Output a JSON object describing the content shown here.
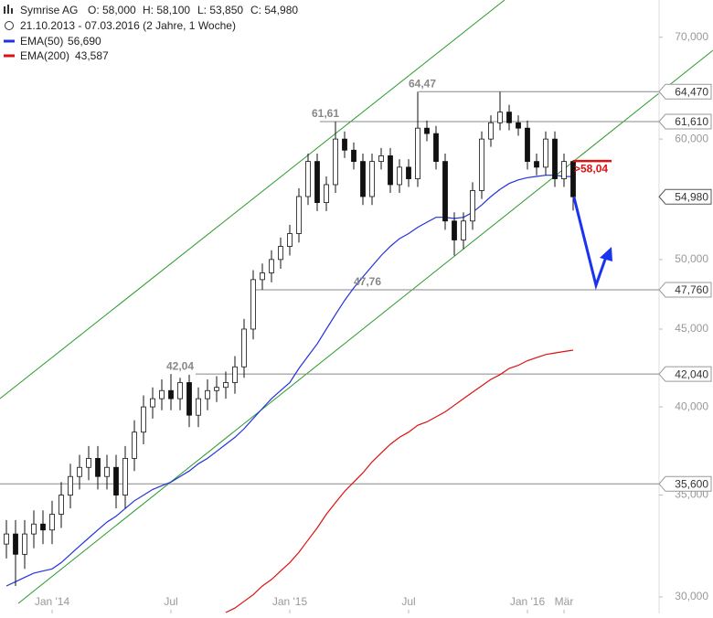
{
  "chart_data": {
    "type": "candlestick",
    "title": "Symrise AG",
    "quote": [
      "O: 58,000",
      "H: 58,100",
      "L: 53,850",
      "C: 54,980"
    ],
    "subtitle": "21.10.2013 - 07.03.2016 (2 Jahre, 1 Woche)",
    "categories": [
      null,
      null,
      null,
      null,
      null,
      "Jan '14",
      null,
      null,
      null,
      null,
      null,
      null,
      null,
      null,
      null,
      null,
      null,
      null,
      "Jul",
      null,
      null,
      null,
      null,
      null,
      null,
      null,
      null,
      null,
      null,
      null,
      null,
      "Jan '15",
      null,
      null,
      null,
      null,
      null,
      null,
      null,
      null,
      null,
      null,
      null,
      null,
      "Jul",
      null,
      null,
      null,
      null,
      null,
      null,
      null,
      null,
      null,
      null,
      null,
      null,
      "Jan '16",
      null,
      null,
      null,
      "Mär",
      null
    ],
    "open": [
      32500,
      33000,
      32000,
      33000,
      33500,
      33200,
      34000,
      35000,
      36000,
      36500,
      37000,
      36000,
      36500,
      35000,
      37000,
      38500,
      40000,
      40500,
      41000,
      40500,
      41500,
      39500,
      40500,
      41000,
      41200,
      41500,
      42500,
      45000,
      48500,
      49000,
      50000,
      51000,
      52000,
      55000,
      58000,
      54500,
      56000,
      60000,
      59000,
      58000,
      55000,
      58000,
      58500,
      56000,
      57500,
      56500,
      61000,
      60500,
      58000,
      53000,
      51500,
      53000,
      55500,
      60000,
      61500,
      62500,
      61500,
      61000,
      58000,
      57500,
      60000,
      56500,
      58000
    ],
    "high": [
      33700,
      33700,
      33700,
      34200,
      34200,
      34700,
      35700,
      36700,
      37200,
      37700,
      37700,
      37200,
      37200,
      37700,
      39200,
      40700,
      41200,
      41700,
      42040,
      41800,
      42000,
      41200,
      41700,
      41900,
      42200,
      43200,
      45700,
      49200,
      49700,
      50700,
      51700,
      52700,
      55700,
      58700,
      58700,
      56700,
      61610,
      60700,
      59700,
      58700,
      58700,
      59200,
      59200,
      58200,
      58200,
      64470,
      61700,
      61200,
      58700,
      53700,
      53700,
      56200,
      60700,
      62200,
      64470,
      63200,
      62200,
      61700,
      58700,
      60700,
      60700,
      58700,
      58100
    ],
    "low": [
      31800,
      30500,
      31300,
      32300,
      32500,
      32500,
      33300,
      34300,
      35300,
      35800,
      35300,
      35300,
      34300,
      34300,
      36300,
      37800,
      39300,
      39800,
      39800,
      39800,
      38800,
      38800,
      39800,
      40300,
      40500,
      40800,
      41800,
      44300,
      47760,
      48300,
      49300,
      50300,
      51300,
      54300,
      53800,
      53800,
      55300,
      58300,
      57300,
      54300,
      54300,
      57300,
      55300,
      55300,
      55800,
      55800,
      59800,
      57300,
      52300,
      50300,
      50800,
      52300,
      54800,
      59300,
      60800,
      60800,
      60300,
      57300,
      56800,
      56800,
      55800,
      55800,
      53850
    ],
    "close": [
      33000,
      32000,
      33000,
      33500,
      33200,
      34000,
      35000,
      36000,
      36500,
      37000,
      36000,
      36500,
      35000,
      37000,
      38500,
      40000,
      40500,
      41000,
      40500,
      41500,
      39500,
      40500,
      41000,
      41200,
      41500,
      42500,
      45000,
      48500,
      49000,
      50000,
      51000,
      52000,
      55000,
      58000,
      54500,
      56000,
      60000,
      59000,
      58000,
      55000,
      58000,
      58500,
      56000,
      57500,
      56500,
      61000,
      60500,
      58000,
      53000,
      51500,
      53000,
      55500,
      60000,
      61500,
      62500,
      61500,
      61000,
      58000,
      57500,
      60000,
      56500,
      58000,
      54980
    ],
    "series": [
      {
        "name": "EMA(50)",
        "last_label": "56,690",
        "color": "#2233dd",
        "values": [
          30500,
          30700,
          30900,
          31100,
          31200,
          31300,
          31600,
          32000,
          32400,
          32800,
          33200,
          33600,
          33900,
          34300,
          34700,
          35000,
          35300,
          35500,
          35700,
          36000,
          36300,
          36700,
          37000,
          37400,
          37800,
          38200,
          38700,
          39300,
          39900,
          40500,
          41000,
          41500,
          42400,
          43200,
          44000,
          45000,
          46000,
          47000,
          47900,
          48700,
          49500,
          50300,
          51000,
          51600,
          52000,
          52500,
          52900,
          53300,
          53300,
          53200,
          53300,
          53700,
          54300,
          55000,
          55600,
          56100,
          56400,
          56600,
          56700,
          56800,
          56800,
          56700,
          56690
        ]
      },
      {
        "name": "EMA(200)",
        "last_label": "43,587",
        "color": "#dd1111",
        "values": [
          null,
          null,
          null,
          null,
          null,
          null,
          null,
          null,
          null,
          null,
          null,
          null,
          null,
          null,
          null,
          null,
          null,
          null,
          null,
          null,
          null,
          null,
          null,
          null,
          29300,
          29500,
          29800,
          30100,
          30500,
          30800,
          31200,
          31600,
          32100,
          32700,
          33300,
          34000,
          34600,
          35200,
          35700,
          36200,
          36800,
          37300,
          37800,
          38200,
          38500,
          38900,
          39100,
          39400,
          39700,
          40100,
          40500,
          40900,
          41300,
          41700,
          42000,
          42400,
          42600,
          42900,
          43100,
          43300,
          43400,
          43500,
          43587
        ]
      }
    ],
    "levels": [
      {
        "value": 64470,
        "label": "64,470",
        "note": "64,47"
      },
      {
        "value": 61610,
        "label": "61,610",
        "note": "61,61"
      },
      {
        "value": 47760,
        "label": "47,760",
        "note": "47,76"
      },
      {
        "value": 42040,
        "label": "42,040",
        "note": "42,04"
      },
      {
        "value": 35600,
        "label": "35,600"
      }
    ],
    "last_price": {
      "value": 54980,
      "label": "54,980"
    },
    "target": {
      "value": 58040,
      "label": ">58,04"
    },
    "log_scale": true,
    "ylim": [
      29260,
      74060
    ],
    "yticks": [
      {
        "value": 30000,
        "label": "30,000"
      },
      {
        "value": 35000,
        "label": "35,000"
      },
      {
        "value": 40000,
        "label": "40,000"
      },
      {
        "value": 45000,
        "label": "45,000"
      },
      {
        "value": 50000,
        "label": "50,000"
      },
      {
        "value": 55000,
        "label": "55,000"
      },
      {
        "value": 60000,
        "label": "60,000"
      },
      {
        "value": 70000,
        "label": "70,000"
      }
    ]
  }
}
